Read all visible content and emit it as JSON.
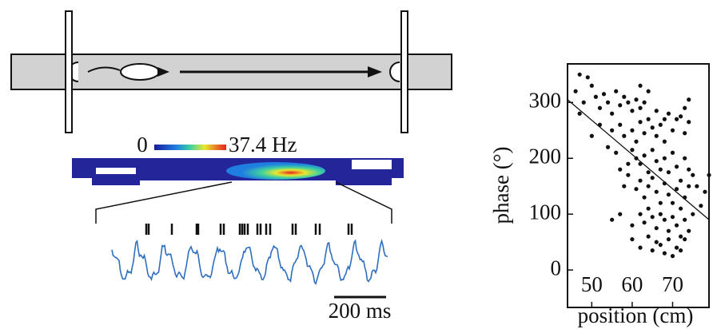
{
  "colorbar": {
    "min_label": "0",
    "max_label": "37.4 Hz"
  },
  "scale_bar": "200 ms",
  "chart_data": {
    "type": "scatter",
    "x_label": "position (cm)",
    "y_label": "phase (°)",
    "xlim": [
      44,
      79
    ],
    "ylim": [
      -67,
      369
    ],
    "xticks": [
      50,
      60,
      70
    ],
    "yticks": [
      0,
      100,
      200,
      300
    ],
    "color": "#111111",
    "x": [
      46,
      47,
      48,
      49,
      47,
      50,
      51,
      52,
      53,
      54,
      55,
      56,
      57,
      58,
      59,
      60,
      61,
      62,
      63,
      55,
      57,
      58,
      60,
      61,
      62,
      63,
      64,
      65,
      66,
      67,
      68,
      70,
      71,
      72,
      73,
      74,
      56,
      57,
      59,
      60,
      61,
      62,
      63,
      64,
      65,
      66,
      67,
      68,
      69,
      70,
      71,
      72,
      73,
      74,
      75,
      76,
      78,
      79,
      58,
      59,
      61,
      62,
      63,
      64,
      65,
      66,
      67,
      68,
      69,
      70,
      71,
      72,
      73,
      74,
      75,
      77,
      55,
      57,
      60,
      62,
      63,
      64,
      65,
      66,
      67,
      68,
      69,
      70,
      71,
      72,
      73,
      74,
      60,
      62,
      64,
      65,
      66,
      67,
      68,
      69,
      70,
      71,
      72,
      73,
      50,
      52,
      54,
      66,
      68,
      69,
      73,
      74,
      64,
      62
    ],
    "y": [
      320,
      350,
      300,
      345,
      280,
      330,
      310,
      290,
      315,
      300,
      280,
      320,
      295,
      310,
      300,
      285,
      305,
      290,
      300,
      250,
      260,
      240,
      250,
      230,
      265,
      245,
      270,
      255,
      240,
      260,
      230,
      250,
      270,
      275,
      245,
      265,
      210,
      180,
      190,
      215,
      200,
      190,
      205,
      175,
      215,
      195,
      180,
      200,
      175,
      210,
      185,
      160,
      200,
      180,
      170,
      150,
      140,
      170,
      150,
      170,
      145,
      160,
      130,
      150,
      165,
      140,
      120,
      155,
      135,
      120,
      145,
      110,
      130,
      150,
      100,
      115,
      90,
      100,
      80,
      100,
      85,
      110,
      95,
      75,
      100,
      90,
      70,
      95,
      80,
      60,
      90,
      70,
      55,
      40,
      60,
      35,
      50,
      45,
      30,
      55,
      25,
      40,
      35,
      55,
      240,
      260,
      220,
      285,
      270,
      280,
      290,
      305,
      320,
      330
    ],
    "trend_line": {
      "x": [
        44,
        79
      ],
      "y": [
        305,
        90
      ]
    }
  }
}
